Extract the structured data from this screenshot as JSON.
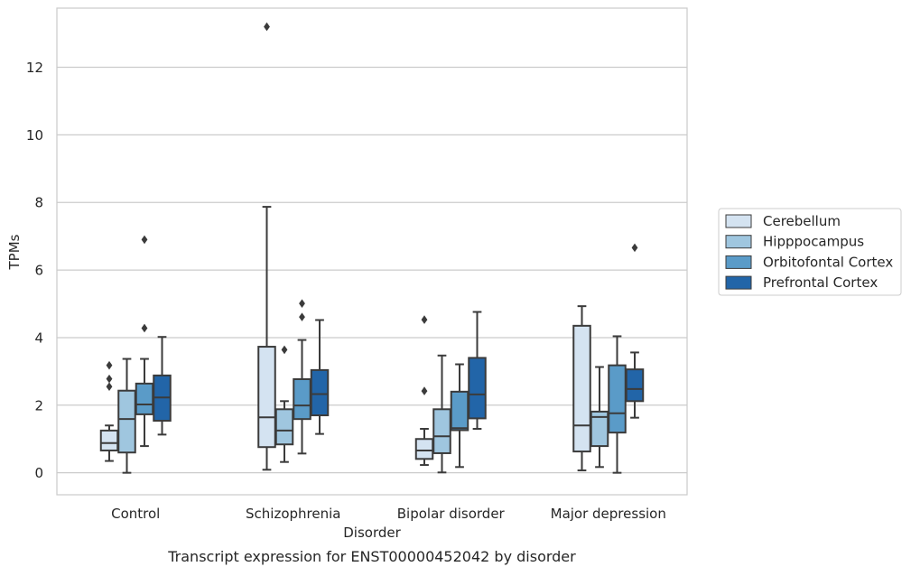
{
  "chart_data": {
    "type": "box",
    "title": "",
    "caption": "Transcript expression for ENST00000452042 by disorder",
    "xlabel": "Disorder",
    "ylabel": "TPMs",
    "categories": [
      "Control",
      "Schizophrenia",
      "Bipolar disorder",
      "Major depression"
    ],
    "ylim": [
      -0.65,
      13.75
    ],
    "yticks": [
      0,
      2,
      4,
      6,
      8,
      10,
      12
    ],
    "grid": true,
    "legend_position": "right",
    "series": [
      {
        "name": "Cerebellum",
        "color": "#d4e3f1",
        "boxes": [
          {
            "whislo": 0.35,
            "q1": 0.66,
            "med": 0.88,
            "q3": 1.25,
            "whishi": 1.4,
            "fliers": [
              2.55,
              2.78,
              3.18
            ]
          },
          {
            "whislo": 0.09,
            "q1": 0.76,
            "med": 1.64,
            "q3": 3.73,
            "whishi": 7.87,
            "fliers": [
              13.2
            ]
          },
          {
            "whislo": 0.23,
            "q1": 0.41,
            "med": 0.66,
            "q3": 1.0,
            "whishi": 1.3,
            "fliers": [
              2.42,
              4.53
            ]
          },
          {
            "whislo": 0.07,
            "q1": 0.63,
            "med": 1.4,
            "q3": 4.35,
            "whishi": 4.93,
            "fliers": []
          }
        ]
      },
      {
        "name": "Hipppocampus",
        "color": "#9fc6df",
        "boxes": [
          {
            "whislo": 0.0,
            "q1": 0.6,
            "med": 1.59,
            "q3": 2.43,
            "whishi": 3.37,
            "fliers": []
          },
          {
            "whislo": 0.32,
            "q1": 0.84,
            "med": 1.25,
            "q3": 1.88,
            "whishi": 2.12,
            "fliers": [
              3.64
            ]
          },
          {
            "whislo": 0.01,
            "q1": 0.58,
            "med": 1.08,
            "q3": 1.88,
            "whishi": 3.47,
            "fliers": []
          },
          {
            "whislo": 0.17,
            "q1": 0.79,
            "med": 1.65,
            "q3": 1.81,
            "whishi": 3.13,
            "fliers": []
          }
        ]
      },
      {
        "name": "Orbitofontal Cortex",
        "color": "#5a9bc8",
        "boxes": [
          {
            "whislo": 0.79,
            "q1": 1.73,
            "med": 2.02,
            "q3": 2.64,
            "whishi": 3.37,
            "fliers": [
              4.28,
              6.9
            ]
          },
          {
            "whislo": 0.57,
            "q1": 1.59,
            "med": 1.99,
            "q3": 2.77,
            "whishi": 3.93,
            "fliers": [
              4.61,
              5.01
            ]
          },
          {
            "whislo": 0.17,
            "q1": 1.26,
            "med": 1.32,
            "q3": 2.4,
            "whishi": 3.21,
            "fliers": []
          },
          {
            "whislo": 0.0,
            "q1": 1.19,
            "med": 1.76,
            "q3": 3.18,
            "whishi": 4.04,
            "fliers": []
          }
        ]
      },
      {
        "name": "Prefrontal Cortex",
        "color": "#2265a8",
        "boxes": [
          {
            "whislo": 1.13,
            "q1": 1.54,
            "med": 2.23,
            "q3": 2.88,
            "whishi": 4.02,
            "fliers": []
          },
          {
            "whislo": 1.15,
            "q1": 1.7,
            "med": 2.33,
            "q3": 3.04,
            "whishi": 4.52,
            "fliers": []
          },
          {
            "whislo": 1.3,
            "q1": 1.61,
            "med": 2.32,
            "q3": 3.4,
            "whishi": 4.76,
            "fliers": []
          },
          {
            "whislo": 1.63,
            "q1": 2.12,
            "med": 2.48,
            "q3": 3.06,
            "whishi": 3.56,
            "fliers": [
              6.66
            ]
          }
        ]
      }
    ]
  }
}
